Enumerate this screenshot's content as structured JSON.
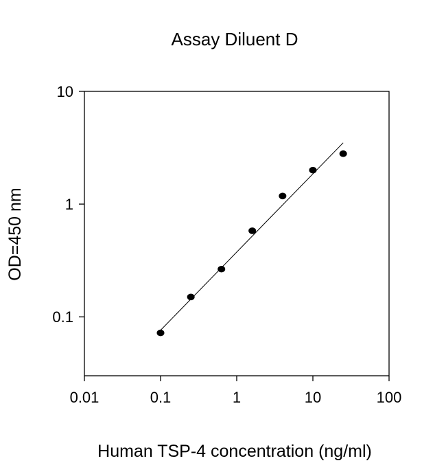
{
  "chart_data": {
    "type": "scatter",
    "title": "Assay Diluent D",
    "xlabel": "Human TSP-4 concentration (ng/ml)",
    "ylabel": "OD=450 nm",
    "x_scale": "log",
    "y_scale": "log",
    "xlim": [
      0.01,
      100
    ],
    "ylim": [
      0.03,
      10
    ],
    "x_ticks": [
      0.01,
      0.1,
      1,
      10,
      100
    ],
    "x_tick_labels": [
      "0.01",
      "0.1",
      "1",
      "10",
      "100"
    ],
    "y_ticks": [
      0.1,
      1,
      10
    ],
    "y_tick_labels": [
      "0.1",
      "1",
      "10"
    ],
    "grid": false,
    "legend": "none",
    "series": [
      {
        "x": [
          0.1,
          0.25,
          0.63,
          1.6,
          4.0,
          10.0,
          25.0
        ],
        "y": [
          0.072,
          0.15,
          0.265,
          0.58,
          1.18,
          2.0,
          2.8
        ]
      }
    ],
    "fit_line": {
      "x": [
        0.1,
        25.0
      ],
      "y": [
        0.076,
        3.5
      ]
    },
    "colors": {
      "marker": "#000000",
      "line": "#000000",
      "axis": "#000000"
    }
  }
}
